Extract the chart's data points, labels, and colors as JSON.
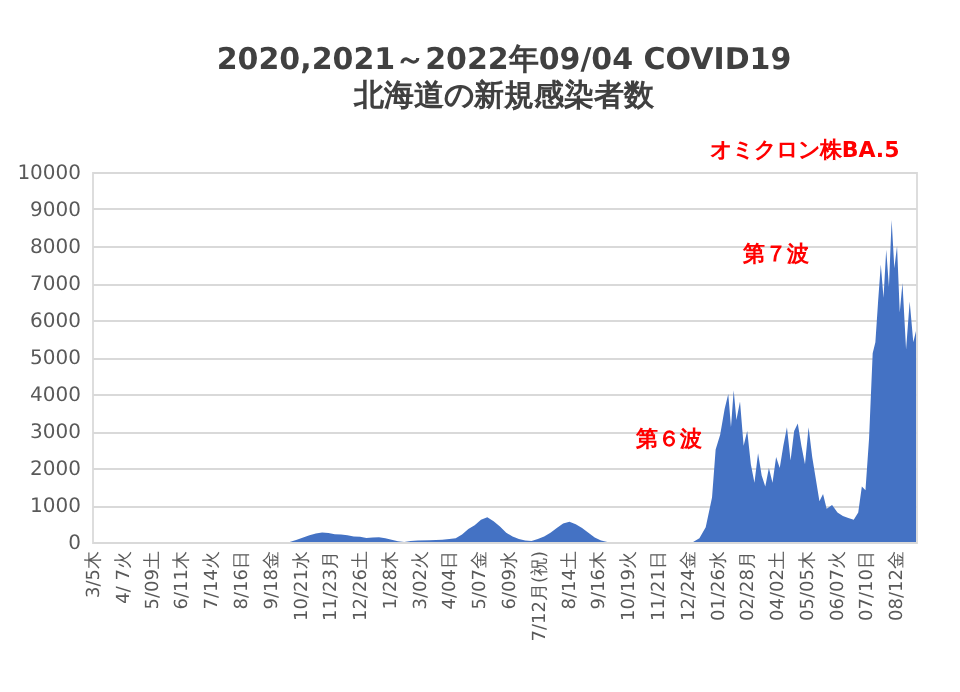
{
  "chart_data": {
    "type": "area",
    "title": "2020,2021～2022年09/04 COVID19",
    "subtitle": "北海道の新規感染者数",
    "x": [
      "2020-03-05",
      "2020-10-10",
      "2020-10-18",
      "2020-10-25",
      "2020-11-01",
      "2020-11-08",
      "2020-11-15",
      "2020-11-22",
      "2020-11-29",
      "2020-12-06",
      "2020-12-13",
      "2020-12-20",
      "2020-12-27",
      "2021-01-03",
      "2021-01-10",
      "2021-01-17",
      "2021-01-24",
      "2021-01-31",
      "2021-02-07",
      "2021-02-14",
      "2021-02-21",
      "2021-03-01",
      "2021-03-14",
      "2021-03-28",
      "2021-04-05",
      "2021-04-12",
      "2021-04-19",
      "2021-04-26",
      "2021-05-03",
      "2021-05-10",
      "2021-05-17",
      "2021-05-24",
      "2021-05-31",
      "2021-06-07",
      "2021-06-14",
      "2021-06-21",
      "2021-06-28",
      "2021-07-05",
      "2021-07-12",
      "2021-07-19",
      "2021-07-26",
      "2021-08-02",
      "2021-08-09",
      "2021-08-16",
      "2021-08-23",
      "2021-08-30",
      "2021-09-06",
      "2021-09-13",
      "2021-09-20",
      "2021-09-27",
      "2021-12-31",
      "2022-01-07",
      "2022-01-14",
      "2022-01-21",
      "2022-01-25",
      "2022-01-30",
      "2022-02-04",
      "2022-02-08",
      "2022-02-11",
      "2022-02-14",
      "2022-02-17",
      "2022-02-21",
      "2022-02-25",
      "2022-03-01",
      "2022-03-05",
      "2022-03-09",
      "2022-03-13",
      "2022-03-17",
      "2022-03-21",
      "2022-03-25",
      "2022-03-29",
      "2022-04-02",
      "2022-04-06",
      "2022-04-10",
      "2022-04-14",
      "2022-04-18",
      "2022-04-22",
      "2022-04-26",
      "2022-04-30",
      "2022-05-04",
      "2022-05-08",
      "2022-05-12",
      "2022-05-16",
      "2022-05-20",
      "2022-05-24",
      "2022-05-28",
      "2022-06-03",
      "2022-06-09",
      "2022-06-15",
      "2022-06-21",
      "2022-06-27",
      "2022-07-02",
      "2022-07-06",
      "2022-07-10",
      "2022-07-14",
      "2022-07-18",
      "2022-07-21",
      "2022-07-24",
      "2022-07-27",
      "2022-07-30",
      "2022-08-02",
      "2022-08-05",
      "2022-08-08",
      "2022-08-11",
      "2022-08-14",
      "2022-08-17",
      "2022-08-20",
      "2022-08-24",
      "2022-08-28",
      "2022-09-01",
      "2022-09-04"
    ],
    "series": [
      {
        "color": "#4472c4",
        "values": [
          0,
          0,
          60,
          120,
          180,
          230,
          260,
          240,
          210,
          200,
          180,
          150,
          140,
          110,
          120,
          130,
          100,
          60,
          20,
          0,
          30,
          40,
          50,
          60,
          80,
          100,
          200,
          350,
          450,
          600,
          670,
          560,
          420,
          250,
          150,
          80,
          40,
          30,
          80,
          150,
          250,
          380,
          500,
          550,
          480,
          380,
          250,
          120,
          40,
          0,
          0,
          100,
          400,
          1200,
          2500,
          2900,
          3600,
          4000,
          3100,
          4100,
          3300,
          3800,
          2600,
          3000,
          2100,
          1600,
          2400,
          1800,
          1500,
          2000,
          1600,
          2300,
          2000,
          2600,
          3100,
          2200,
          3000,
          3200,
          2600,
          2100,
          3100,
          2300,
          1700,
          1100,
          1300,
          900,
          1000,
          800,
          700,
          650,
          600,
          800,
          1500,
          1400,
          2800,
          5100,
          5400,
          6500,
          7500,
          6600,
          7900,
          6900,
          8700,
          7400,
          8000,
          6200,
          7000,
          5200,
          6500,
          5400,
          5700
        ]
      }
    ],
    "xlim": [
      "2020-03-05",
      "2022-09-04"
    ],
    "xticks": [
      {
        "value": "2020-03-05",
        "label": "3/5木"
      },
      {
        "value": "2020-04-07",
        "label": "4/ 7火"
      },
      {
        "value": "2020-05-09",
        "label": "5/09土"
      },
      {
        "value": "2020-06-11",
        "label": "6/11木"
      },
      {
        "value": "2020-07-14",
        "label": "7/14火"
      },
      {
        "value": "2020-08-16",
        "label": "8/16日"
      },
      {
        "value": "2020-09-18",
        "label": "9/18金"
      },
      {
        "value": "2020-10-21",
        "label": "10/21水"
      },
      {
        "value": "2020-11-23",
        "label": "11/23月"
      },
      {
        "value": "2020-12-26",
        "label": "12/26土"
      },
      {
        "value": "2021-01-28",
        "label": "1/28木"
      },
      {
        "value": "2021-03-02",
        "label": "3/02火"
      },
      {
        "value": "2021-04-04",
        "label": "4/04日"
      },
      {
        "value": "2021-05-07",
        "label": "5/07金"
      },
      {
        "value": "2021-06-09",
        "label": "6/09水"
      },
      {
        "value": "2021-07-12",
        "label": "7/12月(祝)"
      },
      {
        "value": "2021-08-14",
        "label": "8/14土"
      },
      {
        "value": "2021-09-16",
        "label": "9/16木"
      },
      {
        "value": "2021-10-19",
        "label": "10/19火"
      },
      {
        "value": "2021-11-21",
        "label": "11/21日"
      },
      {
        "value": "2021-12-24",
        "label": "12/24金"
      },
      {
        "value": "2022-01-26",
        "label": "01/26水"
      },
      {
        "value": "2022-02-28",
        "label": "02/28月"
      },
      {
        "value": "2022-04-02",
        "label": "04/02土"
      },
      {
        "value": "2022-05-05",
        "label": "05/05木"
      },
      {
        "value": "2022-06-07",
        "label": "06/07火"
      },
      {
        "value": "2022-07-10",
        "label": "07/10日"
      },
      {
        "value": "2022-08-12",
        "label": "08/12金"
      }
    ],
    "ylim": [
      0,
      10000
    ],
    "yticks": [
      0,
      1000,
      2000,
      3000,
      4000,
      5000,
      6000,
      7000,
      8000,
      9000,
      10000
    ],
    "grid": "y",
    "annotations": [
      "オミクロン株BA.5",
      "第６波",
      "第７波"
    ]
  }
}
